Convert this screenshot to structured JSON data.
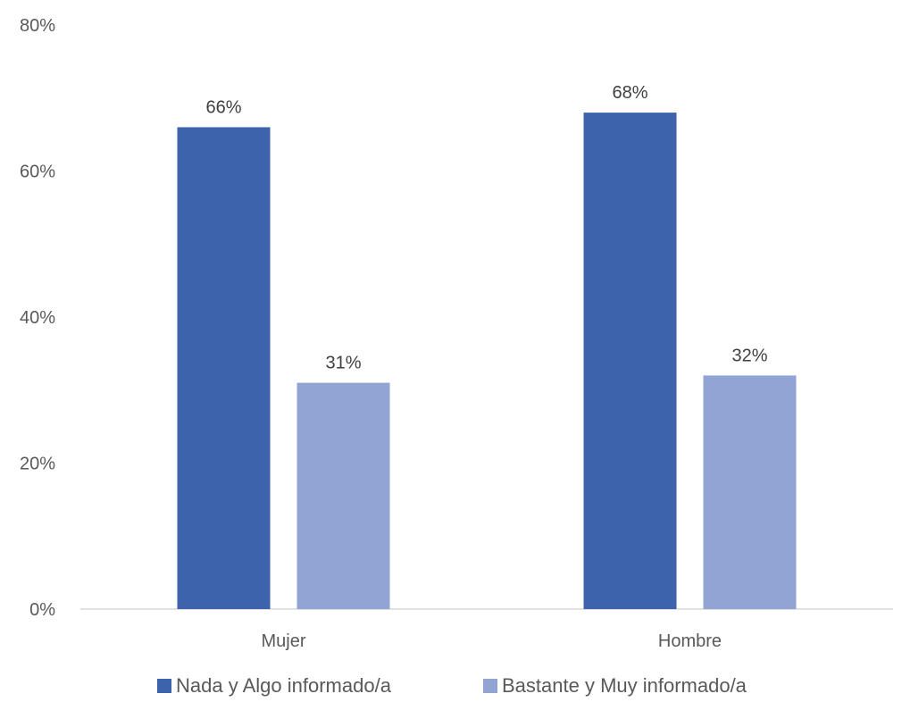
{
  "chart_data": {
    "type": "bar",
    "categories": [
      "Mujer",
      "Hombre"
    ],
    "series": [
      {
        "name": "Nada y Algo informado/a",
        "values": [
          66,
          68
        ],
        "labels": [
          "66%",
          "68%"
        ],
        "color": "#3C63AB"
      },
      {
        "name": "Bastante y Muy informado/a",
        "values": [
          31,
          32
        ],
        "labels": [
          "31%",
          "32%"
        ],
        "color": "#91A5D5"
      }
    ],
    "ylim": [
      0,
      80
    ],
    "yticks": [
      0,
      20,
      40,
      60,
      80
    ],
    "ytick_labels": [
      "0%",
      "20%",
      "40%",
      "60%",
      "80%"
    ],
    "grid": false,
    "legend_position": "bottom",
    "axis_color": "#D9D9D9"
  }
}
